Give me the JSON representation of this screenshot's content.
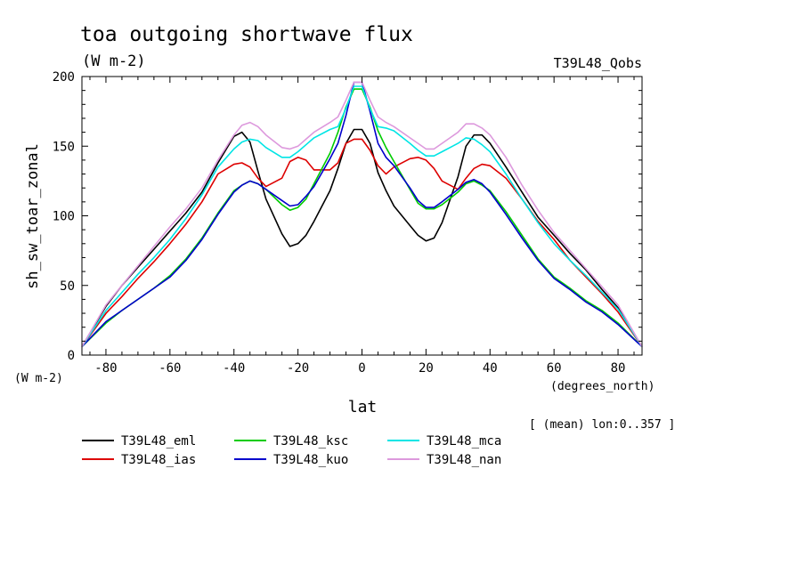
{
  "chart_data": {
    "type": "line",
    "title": "toa outgoing shortwave flux",
    "units_label": "(W m-2)",
    "dataset_label": "T39L48_Qobs",
    "ylabel": "sh_sw_toar_zonal",
    "ylabel_units": "(W m-2)",
    "xlabel": "lat",
    "xlabel_units": "(degrees_north)",
    "footnote": "[ (mean) lon:0..357 ]",
    "xlim": [
      -87.5,
      87.5
    ],
    "ylim": [
      0,
      200
    ],
    "xticks": [
      -80,
      -60,
      -40,
      -20,
      0,
      20,
      40,
      60,
      80
    ],
    "yticks": [
      0,
      50,
      100,
      150,
      200
    ],
    "x": [
      -87.5,
      -80,
      -75,
      -70,
      -65,
      -60,
      -55,
      -50,
      -45,
      -40,
      -37.5,
      -35,
      -32.5,
      -30,
      -25,
      -22.5,
      -20,
      -17.5,
      -15,
      -10,
      -7.5,
      -5,
      -2.5,
      0,
      2.5,
      5,
      7.5,
      10,
      15,
      17.5,
      20,
      22.5,
      25,
      30,
      32.5,
      35,
      37.5,
      40,
      45,
      50,
      55,
      60,
      65,
      70,
      75,
      80,
      87.5
    ],
    "series": [
      {
        "name": "T39L48_eml",
        "color": "#000000",
        "values": [
          6,
          35,
          50,
          63,
          76,
          89,
          102,
          117,
          138,
          157,
          160,
          153,
          132,
          112,
          87,
          78,
          80,
          86,
          96,
          118,
          134,
          152,
          162,
          162,
          152,
          131,
          118,
          107,
          93,
          86,
          82,
          84,
          95,
          128,
          150,
          158,
          158,
          152,
          135,
          117,
          99,
          86,
          73,
          61,
          47,
          34,
          6
        ]
      },
      {
        "name": "T39L48_ias",
        "color": "#dd0000",
        "values": [
          6,
          30,
          42,
          55,
          67,
          80,
          94,
          110,
          130,
          137,
          138,
          135,
          127,
          121,
          127,
          139,
          142,
          140,
          133,
          133,
          138,
          152,
          155,
          155,
          147,
          136,
          130,
          135,
          141,
          142,
          140,
          134,
          125,
          119,
          127,
          134,
          137,
          136,
          127,
          112,
          96,
          83,
          68,
          56,
          44,
          31,
          6
        ]
      },
      {
        "name": "T39L48_ksc",
        "color": "#00cc00",
        "values": [
          6,
          23,
          32,
          40,
          48,
          57,
          69,
          84,
          102,
          118,
          122,
          125,
          123,
          119,
          108,
          104,
          106,
          112,
          123,
          145,
          160,
          178,
          191,
          191,
          178,
          161,
          149,
          139,
          119,
          109,
          105,
          105,
          108,
          117,
          123,
          125,
          122,
          118,
          103,
          86,
          69,
          56,
          48,
          39,
          32,
          23,
          6
        ]
      },
      {
        "name": "T39L48_kuo",
        "color": "#0000cc",
        "values": [
          6,
          24,
          32,
          40,
          48,
          56,
          68,
          83,
          101,
          117,
          122,
          125,
          123,
          119,
          111,
          107,
          108,
          114,
          121,
          141,
          152,
          172,
          196,
          196,
          175,
          152,
          142,
          136,
          120,
          111,
          106,
          106,
          110,
          119,
          124,
          126,
          123,
          117,
          101,
          84,
          68,
          55,
          47,
          38,
          31,
          22,
          6
        ]
      },
      {
        "name": "T39L48_mca",
        "color": "#00e5e5",
        "values": [
          6,
          32,
          45,
          58,
          70,
          83,
          98,
          115,
          135,
          148,
          153,
          155,
          154,
          149,
          142,
          142,
          146,
          151,
          156,
          162,
          164,
          177,
          193,
          193,
          177,
          164,
          163,
          161,
          152,
          147,
          143,
          143,
          146,
          152,
          156,
          155,
          151,
          146,
          130,
          112,
          95,
          80,
          68,
          57,
          45,
          33,
          6
        ]
      },
      {
        "name": "T39L48_nan",
        "color": "#dd99dd",
        "values": [
          6,
          36,
          50,
          64,
          78,
          92,
          105,
          120,
          140,
          158,
          165,
          167,
          164,
          158,
          149,
          148,
          150,
          155,
          160,
          167,
          171,
          183,
          196,
          196,
          183,
          171,
          167,
          164,
          156,
          152,
          148,
          148,
          152,
          160,
          166,
          166,
          163,
          158,
          142,
          122,
          104,
          88,
          75,
          62,
          49,
          36,
          6
        ]
      }
    ]
  }
}
